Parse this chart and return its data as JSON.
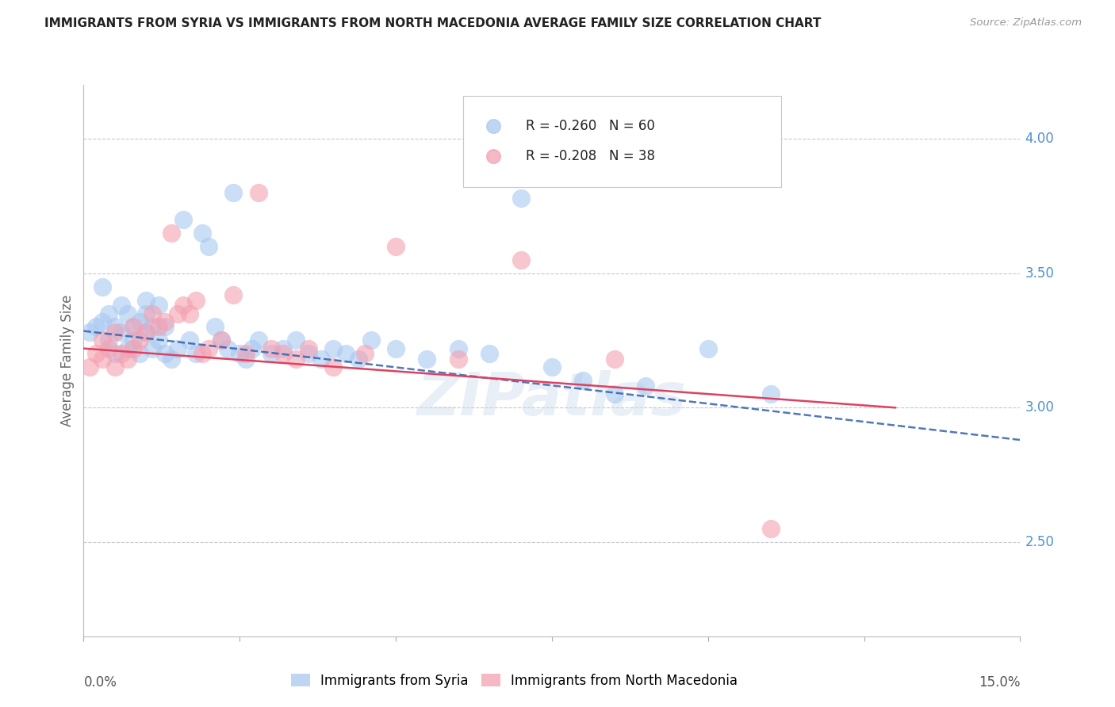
{
  "title": "IMMIGRANTS FROM SYRIA VS IMMIGRANTS FROM NORTH MACEDONIA AVERAGE FAMILY SIZE CORRELATION CHART",
  "source": "Source: ZipAtlas.com",
  "ylabel": "Average Family Size",
  "watermark": "ZIPatlas",
  "legend_syria_r": -0.26,
  "legend_syria_n": 60,
  "legend_macedonia_r": -0.208,
  "legend_macedonia_n": 38,
  "syria_color": "#A8C8F0",
  "macedonia_color": "#F4A0B0",
  "syria_line_color": "#3060B0",
  "macedonia_line_color": "#E04060",
  "background_color": "#FFFFFF",
  "grid_color": "#C8C8D0",
  "right_axis_color": "#5090D0",
  "xlim": [
    0.0,
    0.15
  ],
  "ylim": [
    2.15,
    4.2
  ],
  "right_yticks": [
    2.5,
    3.0,
    3.5,
    4.0
  ],
  "syria_scatter_x": [
    0.001,
    0.002,
    0.003,
    0.003,
    0.004,
    0.004,
    0.005,
    0.005,
    0.006,
    0.006,
    0.007,
    0.007,
    0.008,
    0.008,
    0.009,
    0.009,
    0.01,
    0.01,
    0.01,
    0.011,
    0.011,
    0.012,
    0.012,
    0.013,
    0.013,
    0.014,
    0.015,
    0.016,
    0.017,
    0.018,
    0.019,
    0.02,
    0.021,
    0.022,
    0.023,
    0.024,
    0.025,
    0.026,
    0.027,
    0.028,
    0.03,
    0.032,
    0.034,
    0.036,
    0.038,
    0.04,
    0.042,
    0.044,
    0.046,
    0.05,
    0.055,
    0.06,
    0.065,
    0.07,
    0.075,
    0.08,
    0.085,
    0.09,
    0.1,
    0.11
  ],
  "syria_scatter_y": [
    3.28,
    3.3,
    3.32,
    3.45,
    3.25,
    3.35,
    3.2,
    3.3,
    3.28,
    3.38,
    3.22,
    3.35,
    3.3,
    3.25,
    3.32,
    3.2,
    3.28,
    3.35,
    3.4,
    3.3,
    3.22,
    3.25,
    3.38,
    3.3,
    3.2,
    3.18,
    3.22,
    3.7,
    3.25,
    3.2,
    3.65,
    3.6,
    3.3,
    3.25,
    3.22,
    3.8,
    3.2,
    3.18,
    3.22,
    3.25,
    3.2,
    3.22,
    3.25,
    3.2,
    3.18,
    3.22,
    3.2,
    3.18,
    3.25,
    3.22,
    3.18,
    3.22,
    3.2,
    3.78,
    3.15,
    3.1,
    3.05,
    3.08,
    3.22,
    3.05
  ],
  "macedonia_scatter_x": [
    0.001,
    0.002,
    0.003,
    0.003,
    0.004,
    0.005,
    0.005,
    0.006,
    0.007,
    0.008,
    0.008,
    0.009,
    0.01,
    0.011,
    0.012,
    0.013,
    0.014,
    0.015,
    0.016,
    0.017,
    0.018,
    0.019,
    0.02,
    0.022,
    0.024,
    0.026,
    0.028,
    0.03,
    0.032,
    0.034,
    0.036,
    0.04,
    0.045,
    0.05,
    0.06,
    0.07,
    0.085,
    0.11
  ],
  "macedonia_scatter_y": [
    3.15,
    3.2,
    3.18,
    3.25,
    3.22,
    3.15,
    3.28,
    3.2,
    3.18,
    3.22,
    3.3,
    3.25,
    3.28,
    3.35,
    3.3,
    3.32,
    3.65,
    3.35,
    3.38,
    3.35,
    3.4,
    3.2,
    3.22,
    3.25,
    3.42,
    3.2,
    3.8,
    3.22,
    3.2,
    3.18,
    3.22,
    3.15,
    3.2,
    3.6,
    3.18,
    3.55,
    3.18,
    2.55
  ],
  "syria_line_x": [
    0.0,
    0.15
  ],
  "syria_line_y": [
    3.285,
    2.88
  ],
  "macedonia_line_x": [
    0.0,
    0.13
  ],
  "macedonia_line_y": [
    3.22,
    3.0
  ]
}
